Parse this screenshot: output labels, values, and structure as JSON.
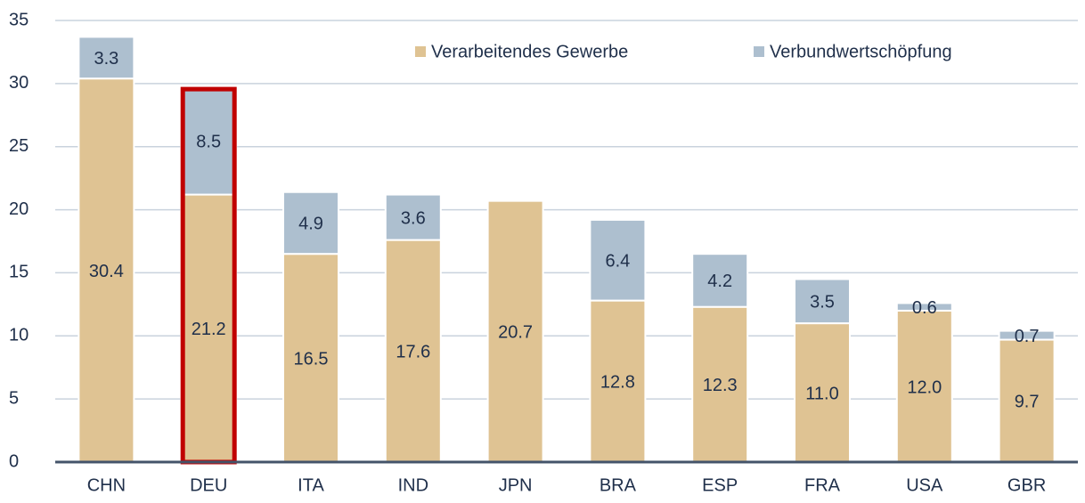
{
  "chart_data": {
    "type": "stacked_bar",
    "categories": [
      "CHN",
      "DEU",
      "ITA",
      "IND",
      "JPN",
      "BRA",
      "ESP",
      "FRA",
      "USA",
      "GBR"
    ],
    "series": [
      {
        "name": "Verarbeitendes Gewerbe",
        "color": "#dfc393",
        "values": [
          30.4,
          21.2,
          16.5,
          17.6,
          20.7,
          12.8,
          12.3,
          11.0,
          12.0,
          9.7
        ],
        "value_labels": [
          "30.4",
          "21.2",
          "16.5",
          "17.6",
          "20.7",
          "12.8",
          "12.3",
          "11.0",
          "12.0",
          "9.7"
        ]
      },
      {
        "name": "Verbundwertschöpfung",
        "color": "#adbfcf",
        "values": [
          3.3,
          8.5,
          4.9,
          3.6,
          null,
          6.4,
          4.2,
          3.5,
          0.6,
          0.7
        ],
        "value_labels": [
          "3.3",
          "8.5",
          "4.9",
          "3.6",
          null,
          "6.4",
          "4.2",
          "3.5",
          "0.6",
          "0.7"
        ]
      }
    ],
    "ylim": [
      0,
      35
    ],
    "yticks": [
      0,
      5,
      10,
      15,
      20,
      25,
      30,
      35
    ],
    "grid": true,
    "highlight": "DEU",
    "highlight_color": "#c00000",
    "legend": "top"
  }
}
